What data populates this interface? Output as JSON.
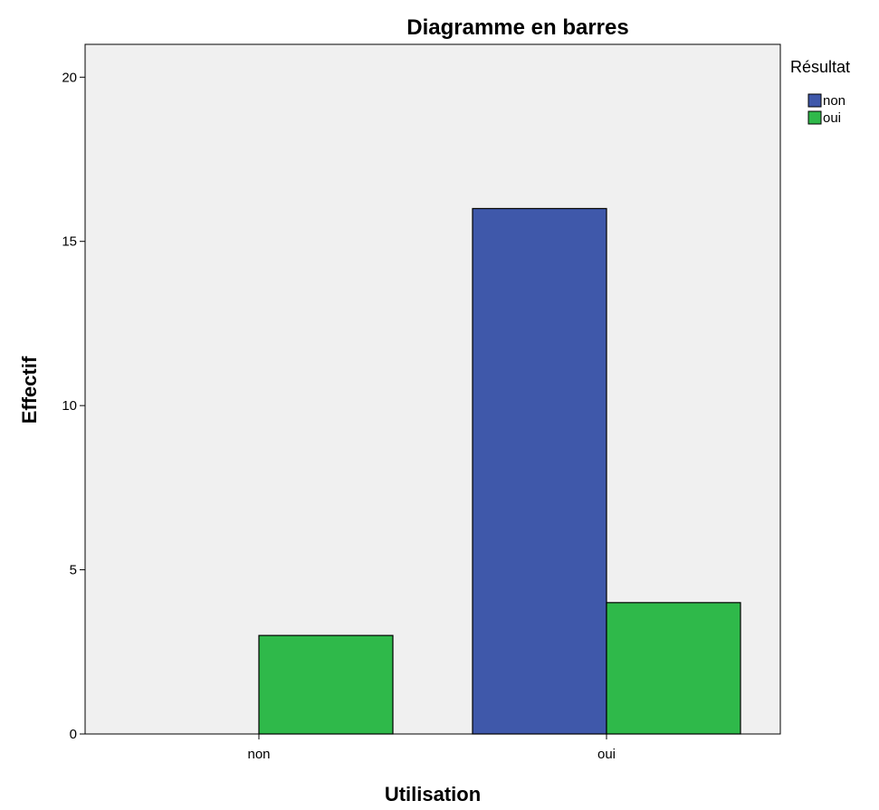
{
  "chart_data": {
    "type": "bar",
    "title": "Diagramme en barres",
    "xlabel": "Utilisation",
    "ylabel": "Effectif",
    "categories": [
      "non",
      "oui"
    ],
    "series": [
      {
        "name": "non",
        "color": "#3f58aa",
        "values": [
          0,
          16
        ]
      },
      {
        "name": "oui",
        "color": "#2fb94a",
        "values": [
          3,
          4
        ]
      }
    ],
    "ylim": [
      0,
      21
    ],
    "yticks": [
      0,
      5,
      10,
      15,
      20
    ],
    "ytick_labels": [
      "0",
      "5",
      "10",
      "15",
      "20"
    ],
    "legend_title": "Résultat",
    "legend_position": "top-right",
    "grid": false,
    "plot_background": "#f0f0f0"
  }
}
